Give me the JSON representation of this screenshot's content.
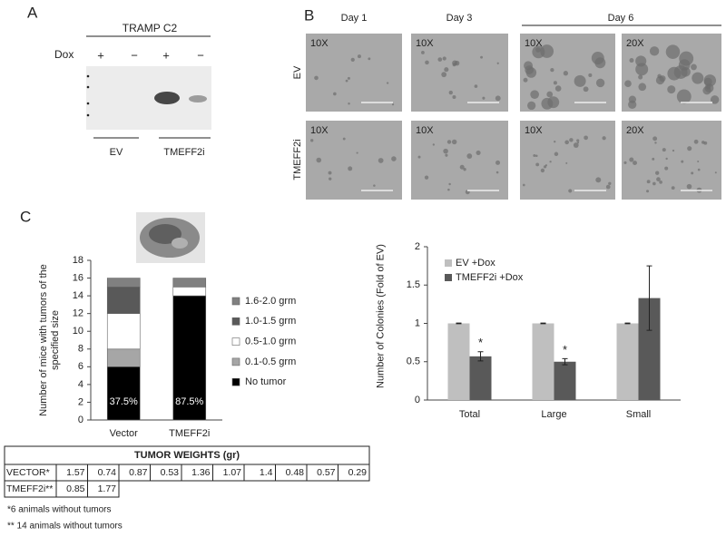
{
  "panel_a": {
    "label": "A",
    "title": "TRAMP C2",
    "dox_label": "Dox",
    "dox_marks": [
      "+",
      "−",
      "+",
      "−"
    ],
    "groups": [
      "EV",
      "TMEFF2i"
    ]
  },
  "panel_b": {
    "label": "B",
    "columns": [
      "Day 1",
      "Day 3",
      "Day 6"
    ],
    "rows": [
      "EV",
      "TMEFF2i"
    ],
    "magnifications": [
      [
        "10X",
        "10X",
        "10X",
        "20X"
      ],
      [
        "10X",
        "10X",
        "10X",
        "20X"
      ]
    ]
  },
  "panel_c": {
    "label": "C"
  },
  "chart_data": [
    {
      "type": "stacked_bar",
      "ylabel": "Number of mice with tumors of the specified size",
      "categories": [
        "Vector",
        "TMEFF2i"
      ],
      "series": [
        {
          "name": "No tumor",
          "color": "#000000",
          "values": [
            6,
            14
          ]
        },
        {
          "name": "0.1-0.5 grm",
          "color": "#a6a6a6",
          "values": [
            2,
            0
          ]
        },
        {
          "name": "0.5-1.0 grm",
          "color": "#ffffff",
          "values": [
            4,
            1
          ]
        },
        {
          "name": "1.0-1.5 grm",
          "color": "#595959",
          "values": [
            3,
            0
          ]
        },
        {
          "name": "1.6-2.0 grm",
          "color": "#808080",
          "values": [
            1,
            1
          ]
        }
      ],
      "annotations": [
        "37.5%",
        "87.5%"
      ],
      "ylim": [
        0,
        18
      ],
      "yticks": [
        0,
        2,
        4,
        6,
        8,
        10,
        12,
        14,
        16,
        18
      ],
      "legend": "right"
    },
    {
      "type": "bar",
      "ylabel": "Number of Colonies (Fold of EV)",
      "categories": [
        "Total",
        "Large",
        "Small"
      ],
      "series": [
        {
          "name": "EV +Dox",
          "color": "#bfbfbf",
          "values": [
            1,
            1,
            1
          ],
          "errors": [
            0.005,
            0.005,
            0.005
          ]
        },
        {
          "name": "TMEFF2i +Dox",
          "color": "#595959",
          "values": [
            0.57,
            0.5,
            1.33
          ],
          "errors": [
            0.06,
            0.04,
            0.42
          ],
          "annotations": [
            "*",
            "*",
            null
          ]
        }
      ],
      "ylim": [
        0,
        2
      ],
      "yticks": [
        0,
        0.5,
        1,
        1.5,
        2
      ],
      "legend": "top-left"
    }
  ],
  "table": {
    "title": "TUMOR WEIGHTS (gr)",
    "rows": [
      [
        "VECTOR*",
        1.57,
        0.74,
        0.87,
        0.53,
        1.36,
        1.07,
        1.4,
        0.48,
        0.57,
        0.29
      ],
      [
        "TMEFF2i**",
        0.85,
        1.77
      ]
    ]
  },
  "footnotes": [
    "*6 animals without tumors",
    "** 14 animals without tumors"
  ]
}
